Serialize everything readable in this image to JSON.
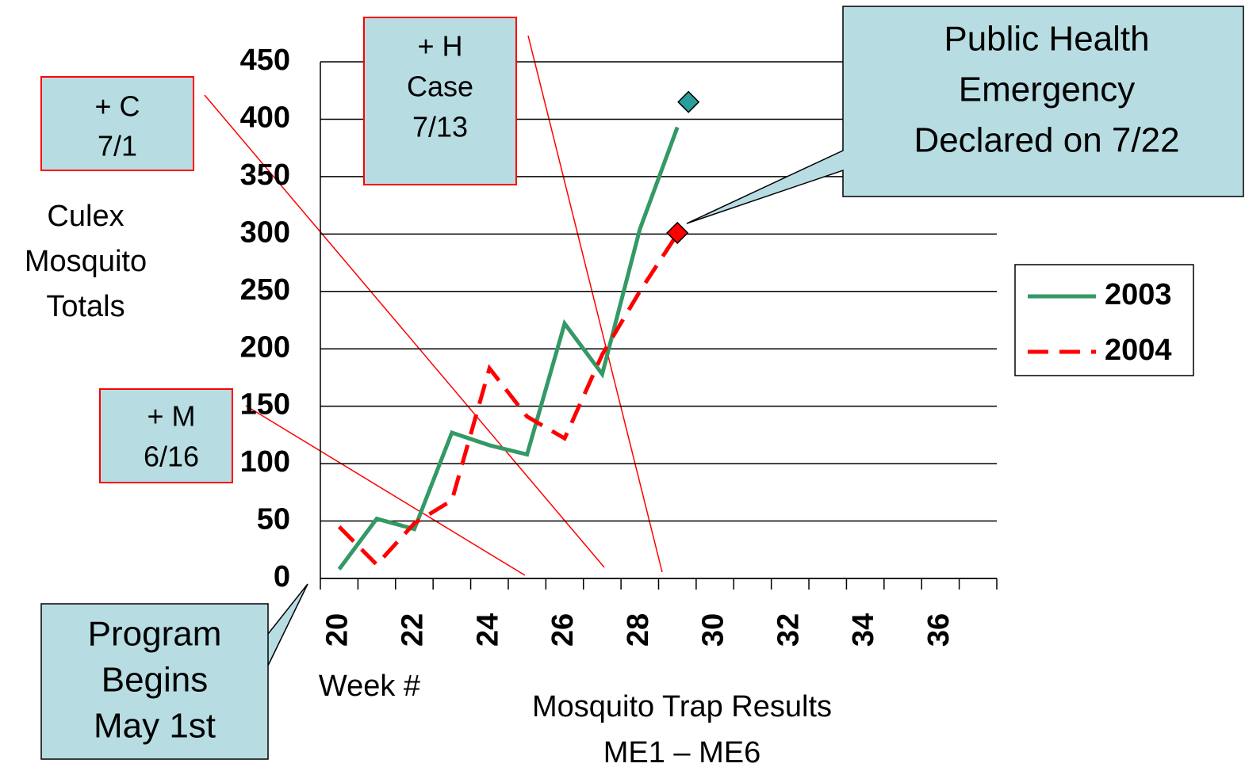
{
  "chart_data": {
    "type": "line",
    "y_label": [
      "Culex",
      "Mosquito",
      "Totals"
    ],
    "x_label": "Week #",
    "caption": [
      "Mosquito Trap Results",
      "ME1 – ME6"
    ],
    "categories": [
      20,
      null,
      22,
      null,
      24,
      null,
      26,
      null,
      28,
      null,
      30,
      null,
      32,
      null,
      34,
      null,
      36,
      null
    ],
    "series": [
      {
        "name": "2003",
        "color": "#339966",
        "dash": false,
        "values": [
          8,
          52,
          43,
          127,
          116,
          108,
          222,
          178,
          304,
          393,
          null,
          null,
          null,
          null,
          null,
          null,
          null,
          null
        ]
      },
      {
        "name": "2004",
        "color": "#ff0000",
        "dash": true,
        "values": [
          45,
          12,
          48,
          68,
          183,
          141,
          122,
          195,
          250,
          300,
          null,
          null,
          null,
          null,
          null,
          null,
          null,
          null
        ]
      }
    ],
    "highlight_points": [
      {
        "category_index": 9,
        "value": 415,
        "color": "#2a9d9d"
      },
      {
        "category_index": 9,
        "value": 301,
        "color": "#ff0000"
      }
    ],
    "ylim": [
      0,
      450
    ],
    "yticks": [
      0,
      50,
      100,
      150,
      200,
      250,
      300,
      350,
      400,
      450
    ],
    "grid": true,
    "annotations": [
      {
        "lines": [
          "+ C",
          "7/1"
        ]
      },
      {
        "lines": [
          "+ H",
          "Case",
          "7/13"
        ]
      },
      {
        "lines": [
          "+ M",
          "6/16"
        ]
      },
      {
        "lines": [
          "Public Health",
          "Emergency",
          "Declared on 7/22"
        ]
      },
      {
        "lines": [
          "Program",
          "Begins",
          "May 1st"
        ]
      }
    ]
  }
}
